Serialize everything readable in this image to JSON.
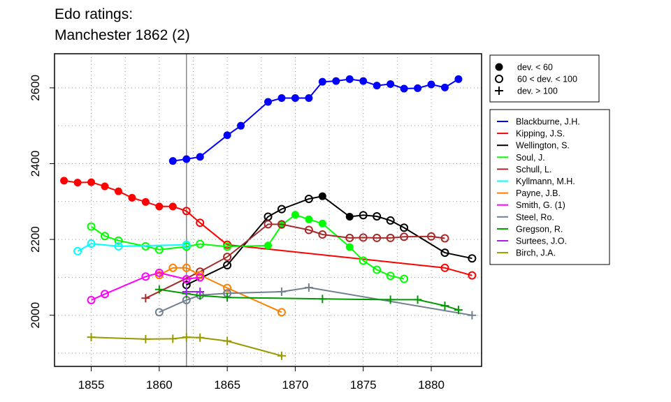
{
  "title": {
    "line1": "Edo ratings:",
    "line2": "Manchester 1862 (2)"
  },
  "chart_data": {
    "type": "line",
    "title": "Edo ratings: Manchester 1862 (2)",
    "xlabel": "",
    "ylabel": "",
    "xlim": [
      1852.3,
      1883.7
    ],
    "ylim": [
      1865,
      2690
    ],
    "xticks": [
      1855,
      1860,
      1865,
      1870,
      1875,
      1880
    ],
    "yticks": [
      2000,
      2200,
      2400,
      2600
    ],
    "grid": true,
    "reference_line_x": 1862,
    "marker_legend": [
      {
        "marker": "filled",
        "label": "dev. < 60"
      },
      {
        "marker": "open",
        "label": "60 < dev. < 100"
      },
      {
        "marker": "plus",
        "label": "dev. > 100"
      }
    ],
    "series": [
      {
        "name": "Blackburne, J.H.",
        "color": "#0000ff",
        "points": [
          [
            1861,
            2407,
            "f"
          ],
          [
            1862,
            2412,
            "f"
          ],
          [
            1863,
            2418,
            "f"
          ],
          [
            1865,
            2475,
            "f"
          ],
          [
            1866,
            2500,
            "f"
          ],
          [
            1868,
            2563,
            "f"
          ],
          [
            1869,
            2573,
            "f"
          ],
          [
            1870,
            2573,
            "f"
          ],
          [
            1871,
            2573,
            "f"
          ],
          [
            1872,
            2616,
            "f"
          ],
          [
            1873,
            2618,
            "f"
          ],
          [
            1874,
            2623,
            "f"
          ],
          [
            1875,
            2618,
            "f"
          ],
          [
            1876,
            2606,
            "f"
          ],
          [
            1877,
            2610,
            "f"
          ],
          [
            1878,
            2598,
            "f"
          ],
          [
            1879,
            2599,
            "f"
          ],
          [
            1880,
            2609,
            "f"
          ],
          [
            1881,
            2601,
            "f"
          ],
          [
            1882,
            2623,
            "f"
          ]
        ]
      },
      {
        "name": "Kipping, J.S.",
        "color": "#ff0000",
        "points": [
          [
            1853,
            2355,
            "f"
          ],
          [
            1854,
            2350,
            "f"
          ],
          [
            1855,
            2351,
            "f"
          ],
          [
            1856,
            2340,
            "f"
          ],
          [
            1857,
            2327,
            "f"
          ],
          [
            1858,
            2310,
            "f"
          ],
          [
            1859,
            2299,
            "f"
          ],
          [
            1860,
            2287,
            "f"
          ],
          [
            1861,
            2287,
            "f"
          ],
          [
            1862,
            2275,
            "o"
          ],
          [
            1863,
            2244,
            "o"
          ],
          [
            1865,
            2186,
            "o"
          ],
          [
            1881,
            2125,
            "o"
          ],
          [
            1883,
            2105,
            "o"
          ]
        ]
      },
      {
        "name": "Wellington, S.",
        "color": "#000000",
        "points": [
          [
            1862,
            2080,
            "o"
          ],
          [
            1865,
            2132,
            "o"
          ],
          [
            1868,
            2260,
            "o"
          ],
          [
            1869,
            2280,
            "o"
          ],
          [
            1871,
            2307,
            "o"
          ],
          [
            1872,
            2314,
            "f"
          ],
          [
            1874,
            2260,
            "f"
          ],
          [
            1875,
            2264,
            "o"
          ],
          [
            1876,
            2261,
            "o"
          ],
          [
            1877,
            2250,
            "o"
          ],
          [
            1878,
            2231,
            "o"
          ],
          [
            1881,
            2165,
            "o"
          ],
          [
            1883,
            2150,
            "o"
          ]
        ]
      },
      {
        "name": "Soul, J.",
        "color": "#00ff00",
        "points": [
          [
            1855,
            2234,
            "o"
          ],
          [
            1856,
            2209,
            "o"
          ],
          [
            1857,
            2197,
            "o"
          ],
          [
            1859,
            2182,
            "o"
          ],
          [
            1860,
            2173,
            "o"
          ],
          [
            1862,
            2181,
            "o"
          ],
          [
            1863,
            2188,
            "o"
          ],
          [
            1865,
            2181,
            "o"
          ],
          [
            1868,
            2184,
            "f"
          ],
          [
            1869,
            2238,
            "f"
          ],
          [
            1870,
            2265,
            "f"
          ],
          [
            1871,
            2253,
            "f"
          ],
          [
            1872,
            2242,
            "f"
          ],
          [
            1874,
            2180,
            "f"
          ],
          [
            1875,
            2144,
            "o"
          ],
          [
            1876,
            2120,
            "o"
          ],
          [
            1877,
            2104,
            "o"
          ],
          [
            1878,
            2096,
            "o"
          ]
        ]
      },
      {
        "name": "Schull, L.",
        "color": "#a52a2a",
        "points": [
          [
            1859,
            2045,
            "p"
          ],
          [
            1863,
            2115,
            "o"
          ],
          [
            1865,
            2154,
            "o"
          ],
          [
            1868,
            2240,
            "o"
          ],
          [
            1869,
            2240,
            "o"
          ],
          [
            1871,
            2225,
            "o"
          ],
          [
            1872,
            2213,
            "o"
          ],
          [
            1874,
            2204,
            "o"
          ],
          [
            1875,
            2205,
            "o"
          ],
          [
            1876,
            2204,
            "o"
          ],
          [
            1877,
            2204,
            "o"
          ],
          [
            1878,
            2207,
            "o"
          ],
          [
            1880,
            2208,
            "o"
          ],
          [
            1881,
            2203,
            "o"
          ]
        ]
      },
      {
        "name": "Kyllmann, M.H.",
        "color": "#00ffff",
        "points": [
          [
            1854,
            2169,
            "o"
          ],
          [
            1855,
            2189,
            "o"
          ],
          [
            1857,
            2182,
            "o"
          ],
          [
            1862,
            2186,
            "o"
          ]
        ]
      },
      {
        "name": "Payne, J.B.",
        "color": "#ff7f00",
        "points": [
          [
            1860,
            2106,
            "o"
          ],
          [
            1861,
            2125,
            "o"
          ],
          [
            1862,
            2125,
            "o"
          ],
          [
            1863,
            2106,
            "o"
          ],
          [
            1865,
            2072,
            "o"
          ],
          [
            1869,
            2008,
            "o"
          ]
        ]
      },
      {
        "name": "Smith, G. (1)",
        "color": "#ff00ff",
        "points": [
          [
            1855,
            2040,
            "o"
          ],
          [
            1856,
            2056,
            "o"
          ],
          [
            1859,
            2102,
            "o"
          ],
          [
            1860,
            2112,
            "o"
          ],
          [
            1862,
            2095,
            "o"
          ],
          [
            1863,
            2100,
            "o"
          ]
        ]
      },
      {
        "name": "Steel, Ro.",
        "color": "#708090",
        "points": [
          [
            1860,
            2008,
            "o"
          ],
          [
            1862,
            2040,
            "o"
          ],
          [
            1863,
            2053,
            "o"
          ],
          [
            1865,
            2058,
            "o"
          ],
          [
            1869,
            2062,
            "p"
          ],
          [
            1871,
            2073,
            "p"
          ],
          [
            1883,
            2000,
            "p"
          ]
        ]
      },
      {
        "name": "Gregson, R.",
        "color": "#009900",
        "points": [
          [
            1860,
            2068,
            "p"
          ],
          [
            1862,
            2057,
            "p"
          ],
          [
            1863,
            2052,
            "p"
          ],
          [
            1865,
            2047,
            "p"
          ],
          [
            1872,
            2043,
            "p"
          ],
          [
            1877,
            2041,
            "p"
          ],
          [
            1879,
            2041,
            "p"
          ],
          [
            1881,
            2025,
            "p"
          ],
          [
            1882,
            2014,
            "p"
          ]
        ]
      },
      {
        "name": "Surtees, J.O.",
        "color": "#a020f0",
        "points": [
          [
            1862,
            2062,
            "p"
          ],
          [
            1863,
            2062,
            "p"
          ]
        ]
      },
      {
        "name": "Birch, J.A.",
        "color": "#999900",
        "points": [
          [
            1855,
            1942,
            "p"
          ],
          [
            1859,
            1937,
            "p"
          ],
          [
            1861,
            1938,
            "p"
          ],
          [
            1862,
            1942,
            "p"
          ],
          [
            1863,
            1941,
            "p"
          ],
          [
            1865,
            1932,
            "p"
          ],
          [
            1869,
            1893,
            "p"
          ]
        ]
      }
    ]
  }
}
